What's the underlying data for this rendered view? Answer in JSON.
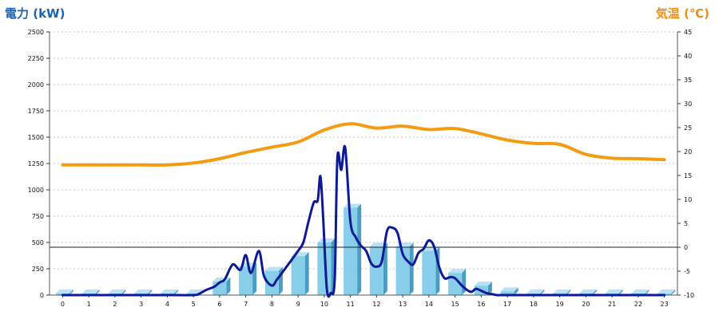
{
  "chart_data": {
    "type": "bar",
    "left_axis_title": "電力 (kW)",
    "right_axis_title": "気温 (℃)",
    "categories": [
      "0",
      "1",
      "2",
      "3",
      "4",
      "5",
      "6",
      "7",
      "8",
      "9",
      "10",
      "11",
      "12",
      "13",
      "14",
      "15",
      "16",
      "17",
      "18",
      "19",
      "20",
      "21",
      "22",
      "23"
    ],
    "y_ticks": [
      "0",
      "250",
      "500",
      "750",
      "1000",
      "1250",
      "1500",
      "1750",
      "2000",
      "2250",
      "2500"
    ],
    "y2_ticks": [
      "-10",
      "-5",
      "0",
      "5",
      "10",
      "15",
      "20",
      "25",
      "30",
      "35",
      "40",
      "45"
    ],
    "ylim": [
      0,
      2500
    ],
    "y2lim": [
      -10,
      45
    ],
    "series": [
      {
        "kind": "bar",
        "color": "#87ceeb",
        "values": [
          15,
          15,
          15,
          15,
          15,
          15,
          130,
          270,
          230,
          370,
          500,
          830,
          460,
          460,
          420,
          210,
          90,
          35,
          15,
          15,
          15,
          15,
          15,
          15
        ]
      },
      {
        "kind": "line",
        "axis": "left",
        "color": "#0c1a96",
        "x": [
          0,
          1,
          2,
          3,
          4,
          5,
          5.2,
          5.5,
          5.8,
          6.0,
          6.2,
          6.5,
          6.8,
          7.0,
          7.2,
          7.5,
          7.7,
          8.0,
          8.2,
          8.5,
          8.8,
          9.0,
          9.2,
          9.4,
          9.6,
          9.75,
          9.85,
          9.95,
          10.1,
          10.25,
          10.4,
          10.5,
          10.65,
          10.8,
          11.0,
          11.2,
          11.4,
          11.6,
          11.8,
          12.0,
          12.2,
          12.4,
          12.6,
          12.8,
          13.0,
          13.2,
          13.4,
          13.6,
          13.8,
          14.0,
          14.2,
          14.4,
          14.6,
          14.8,
          15.0,
          15.3,
          15.6,
          15.8,
          16.0,
          16.2,
          16.4,
          16.6,
          16.8,
          17.0,
          17.2,
          18,
          19,
          20,
          21,
          22,
          23
        ],
        "y": [
          0,
          0,
          0,
          0,
          0,
          0,
          10,
          50,
          80,
          120,
          150,
          290,
          240,
          380,
          210,
          420,
          180,
          90,
          150,
          250,
          350,
          420,
          500,
          700,
          880,
          900,
          1130,
          780,
          60,
          20,
          150,
          1300,
          1190,
          1400,
          700,
          550,
          470,
          420,
          300,
          270,
          320,
          610,
          640,
          590,
          390,
          320,
          290,
          400,
          440,
          520,
          460,
          260,
          160,
          170,
          160,
          80,
          30,
          60,
          40,
          20,
          10,
          0,
          0,
          0,
          0,
          0,
          0,
          0,
          0,
          0,
          0
        ]
      },
      {
        "kind": "line",
        "axis": "right",
        "color": "#f39c12",
        "x": [
          0,
          1,
          2,
          3,
          4,
          5,
          6,
          7,
          8,
          9,
          10,
          11,
          12,
          13,
          14,
          15,
          16,
          17,
          18,
          19,
          20,
          21,
          22,
          23
        ],
        "y": [
          17.2,
          17.2,
          17.2,
          17.2,
          17.2,
          17.6,
          18.5,
          19.8,
          20.9,
          22,
          24.5,
          25.8,
          24.9,
          25.3,
          24.6,
          24.8,
          23.7,
          22.4,
          21.7,
          21.5,
          19.4,
          18.6,
          18.5,
          18.3
        ]
      }
    ],
    "reference_lines": [
      {
        "axis": "right",
        "value": 0
      }
    ],
    "grid": true
  }
}
